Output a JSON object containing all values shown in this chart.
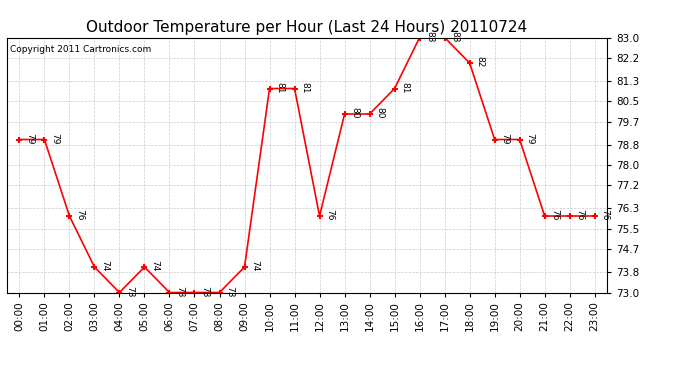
{
  "title": "Outdoor Temperature per Hour (Last 24 Hours) 20110724",
  "copyright": "Copyright 2011 Cartronics.com",
  "hours": [
    "00:00",
    "01:00",
    "02:00",
    "03:00",
    "04:00",
    "05:00",
    "06:00",
    "07:00",
    "08:00",
    "09:00",
    "10:00",
    "11:00",
    "12:00",
    "13:00",
    "14:00",
    "15:00",
    "16:00",
    "17:00",
    "18:00",
    "19:00",
    "20:00",
    "21:00",
    "22:00",
    "23:00"
  ],
  "values": [
    79,
    79,
    76,
    74,
    73,
    74,
    73,
    73,
    73,
    74,
    81,
    81,
    76,
    80,
    80,
    81,
    83,
    83,
    82,
    79,
    79,
    76,
    76,
    76
  ],
  "ylim": [
    73.0,
    83.0
  ],
  "yticks": [
    73.0,
    73.8,
    74.7,
    75.5,
    76.3,
    77.2,
    78.0,
    78.8,
    79.7,
    80.5,
    81.3,
    82.2,
    83.0
  ],
  "line_color": "red",
  "marker": "+",
  "marker_color": "red",
  "grid_color": "#cccccc",
  "bg_color": "#ffffff",
  "title_fontsize": 11,
  "label_fontsize": 6.5,
  "copyright_fontsize": 6.5,
  "tick_fontsize": 7.5
}
